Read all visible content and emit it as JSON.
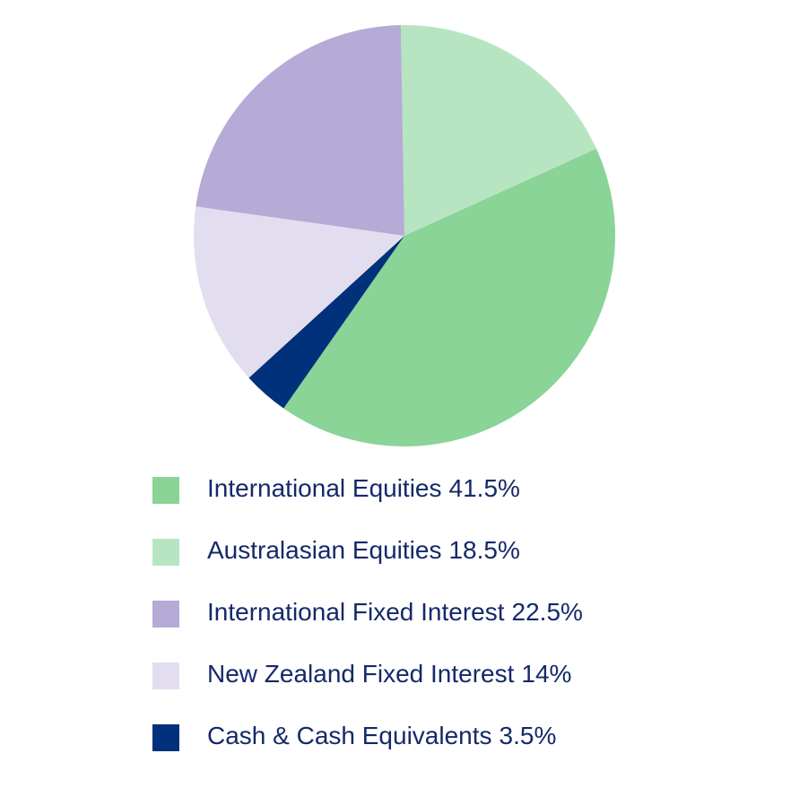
{
  "chart_data": {
    "type": "pie",
    "categories": [
      "International Equities",
      "Australasian Equities",
      "International Fixed Interest",
      "New Zealand Fixed Interest",
      "Cash & Cash Equivalents"
    ],
    "values": [
      41.5,
      18.5,
      22.5,
      14,
      3.5
    ],
    "value_labels": [
      "41.5%",
      "18.5%",
      "22.5%",
      "14%",
      "3.5%"
    ],
    "colors": [
      "#89d496",
      "#b7e5c1",
      "#b6aad6",
      "#e2def0",
      "#00317a"
    ]
  }
}
